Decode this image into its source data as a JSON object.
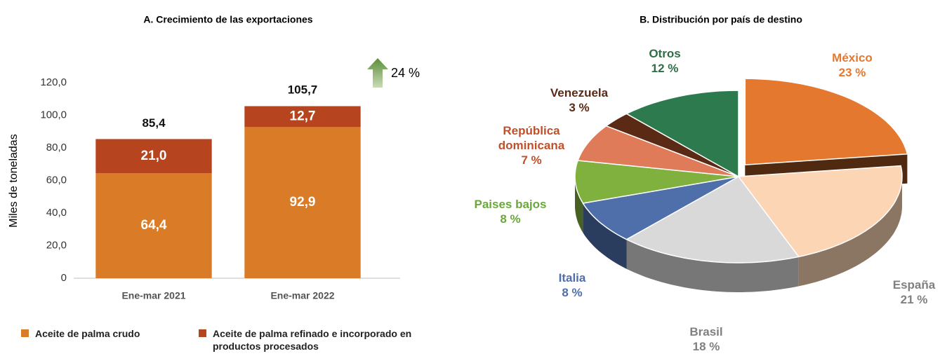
{
  "chart_data": [
    {
      "type": "stacked-bar",
      "title": "A. Crecimiento de las exportaciones",
      "y_label": "Miles de toneladas",
      "categories": [
        "Ene-mar 2021",
        "Ene-mar 2022"
      ],
      "series": [
        {
          "name": "Aceite de palma crudo",
          "color": "#d97b27",
          "values": [
            64.4,
            92.9
          ],
          "value_labels": [
            "64,4",
            "92,9"
          ]
        },
        {
          "name": "Aceite de palma refinado e incorporado en productos procesados",
          "color": "#b5441f",
          "values": [
            21.0,
            12.7
          ],
          "value_labels": [
            "21,0",
            "12,7"
          ]
        }
      ],
      "totals": [
        85.4,
        105.7
      ],
      "total_labels": [
        "85,4",
        "105,7"
      ],
      "annotation": "24 %",
      "ylim": [
        0,
        120
      ],
      "yticks": [
        0,
        {
          "value": 20,
          "label": "20,0"
        },
        {
          "value": 40,
          "label": "40,0"
        },
        {
          "value": 60,
          "label": "60,0"
        },
        {
          "value": 80,
          "label": "80,0"
        },
        {
          "value": 100,
          "label": "100,0"
        },
        {
          "value": 120,
          "label": "120,0"
        }
      ],
      "legend": "bottom"
    },
    {
      "type": "pie3d",
      "title": "B. Distribución por país de destino",
      "categories": [
        "México",
        "España",
        "Brasil",
        "Italia",
        "Paises bajos",
        "República dominicana",
        "Venezuela",
        "Otros"
      ],
      "values": [
        23,
        21,
        18,
        8,
        8,
        7,
        3,
        12
      ],
      "value_labels": [
        "23 %",
        "21 %",
        "18 %",
        "8 %",
        "8 %",
        "7 %",
        "3 %",
        "12 %"
      ],
      "colors": [
        "#e5782f",
        "#fcd5b4",
        "#d9d9d9",
        "#4f6fab",
        "#80b13f",
        "#e07b5a",
        "#5a2a14",
        "#2e7a4f"
      ],
      "label_colors": [
        "#e5782f",
        "#808080",
        "#808080",
        "#4f6fab",
        "#6aa83a",
        "#c0502a",
        "#5a2a14",
        "#2e6e45"
      ]
    }
  ]
}
